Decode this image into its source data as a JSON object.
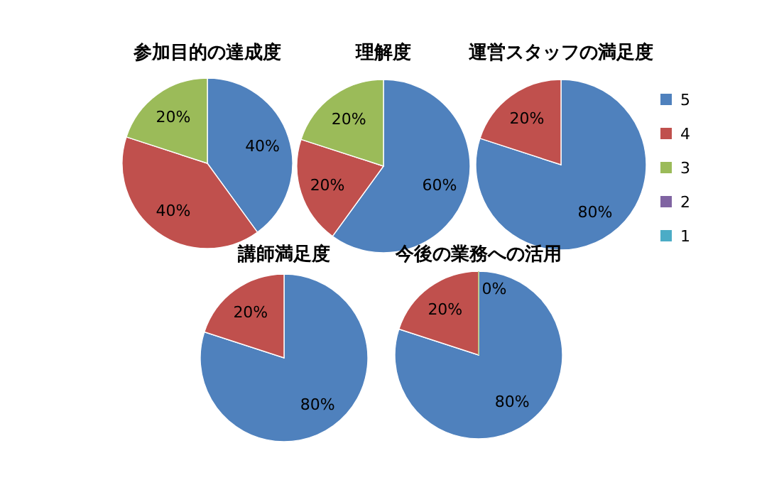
{
  "chart_data": [
    {
      "type": "pie",
      "title": "参加目的の達成度",
      "categories": [
        null,
        null,
        null
      ],
      "values": [
        40,
        40,
        20
      ],
      "colors": [
        "#4f81bd",
        "#c0504d",
        "#9bbb59"
      ],
      "value_labels": [
        "40%",
        "40%",
        "20%"
      ]
    },
    {
      "type": "pie",
      "title": "理解度",
      "categories": [
        null,
        null,
        null
      ],
      "values": [
        60,
        20,
        20
      ],
      "colors": [
        "#4f81bd",
        "#c0504d",
        "#9bbb59"
      ],
      "value_labels": [
        "60%",
        "20%",
        "20%"
      ]
    },
    {
      "type": "pie",
      "title": "運営スタッフの満足度",
      "categories": [
        "5",
        "4",
        "3",
        "2",
        "1"
      ],
      "values": [
        80,
        20,
        0,
        0,
        0
      ],
      "colors": [
        "#4f81bd",
        "#c0504d",
        "#9bbb59",
        "#8064a2",
        "#4bacc6"
      ],
      "value_labels": [
        "80%",
        "20%",
        null,
        null,
        null
      ],
      "legend": "right"
    },
    {
      "type": "pie",
      "title": "講師満足度",
      "categories": [
        null,
        null
      ],
      "values": [
        80,
        20
      ],
      "colors": [
        "#4f81bd",
        "#c0504d"
      ],
      "value_labels": [
        "80%",
        "20%"
      ]
    },
    {
      "type": "pie",
      "title": "今後の業務への活用",
      "categories": [
        null,
        null,
        null
      ],
      "values": [
        80,
        20,
        0
      ],
      "colors": [
        "#4f81bd",
        "#c0504d",
        "#9bbb59"
      ],
      "value_labels": [
        "80%",
        "20%",
        "0%"
      ]
    }
  ]
}
